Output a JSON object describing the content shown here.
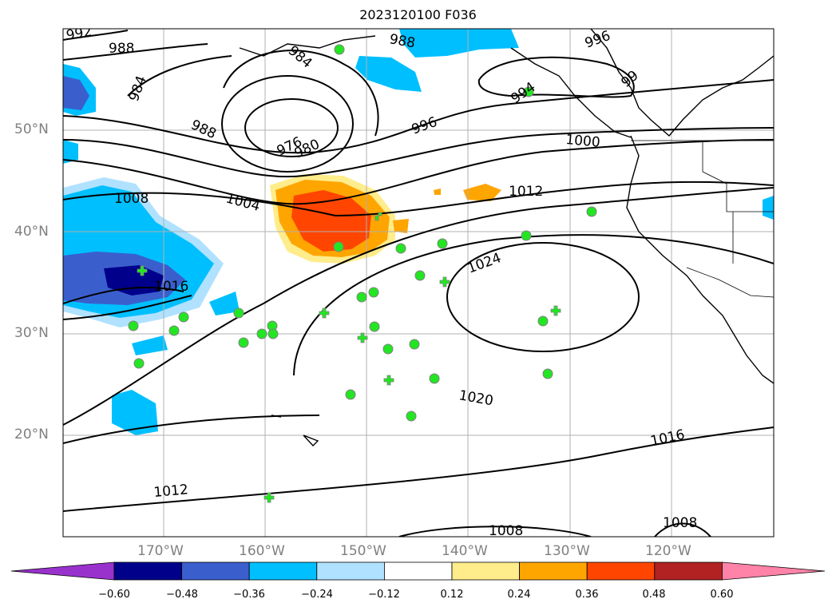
{
  "title": "2023120100 F036",
  "lat_labels": [
    "50°N",
    "40°N",
    "30°N",
    "20°N"
  ],
  "lon_labels": [
    "170°W",
    "160°W",
    "150°W",
    "140°W",
    "130°W",
    "120°W"
  ],
  "contour_labels": [
    "992",
    "988",
    "984",
    "988",
    "976",
    "980",
    "984",
    "988",
    "996",
    "996",
    "994",
    "99",
    "1000",
    "1004",
    "1008",
    "1012",
    "1016",
    "1024",
    "1020",
    "1016",
    "1012",
    "1008",
    "1008"
  ],
  "colorbar": {
    "ticks": [
      "−0.60",
      "−0.48",
      "−0.36",
      "−0.24",
      "−0.12",
      "0.12",
      "0.24",
      "0.36",
      "0.48",
      "0.60"
    ],
    "colors": [
      "#9932cc",
      "#00008b",
      "#3a5fcd",
      "#00bfff",
      "#b0e2ff",
      "#ffffff",
      "#ffec8b",
      "#ffa500",
      "#ff4500",
      "#b22222",
      "#ff83a8"
    ]
  },
  "station_marker_color": "#22e622"
}
